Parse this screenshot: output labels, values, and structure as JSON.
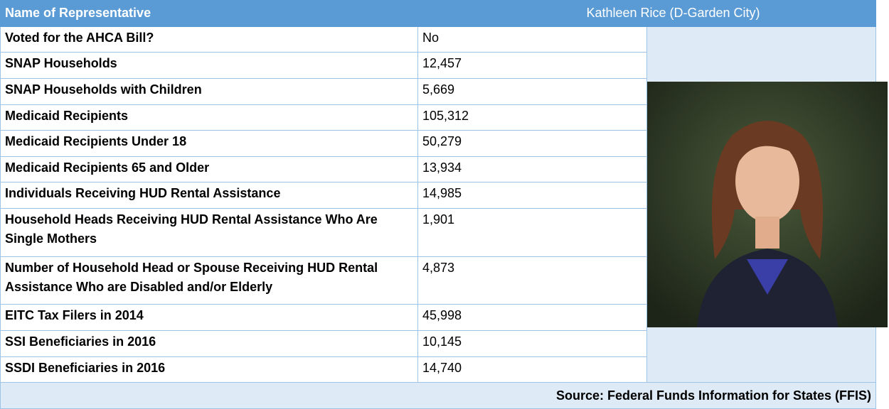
{
  "header": {
    "label": "Name of Representative",
    "name": "Kathleen Rice (D-Garden City)"
  },
  "table": {
    "rows": [
      [
        "Voted for the AHCA Bill?",
        "No"
      ],
      [
        "SNAP Households",
        "12,457"
      ],
      [
        "SNAP Households with Children",
        "5,669"
      ],
      [
        "Medicaid Recipients",
        "105,312"
      ],
      [
        "Medicaid Recipients Under 18",
        "50,279"
      ],
      [
        "Medicaid Recipients 65 and Older",
        "13,934"
      ],
      [
        "Individuals Receiving HUD Rental Assistance",
        "14,985"
      ],
      [
        "Household Heads Receiving HUD Rental Assistance Who Are Single Mothers",
        "1,901"
      ],
      [
        "Number of Household Head or Spouse Receiving HUD Rental Assistance Who are Disabled and/or Elderly",
        "4,873"
      ],
      [
        "EITC Tax Filers in 2014",
        "45,998"
      ],
      [
        "SSI Beneficiaries in 2016",
        "10,145"
      ],
      [
        "SSDI Beneficiaries in 2016",
        "14,740"
      ]
    ]
  },
  "source": "Source: Federal Funds Information for States (FFIS)"
}
